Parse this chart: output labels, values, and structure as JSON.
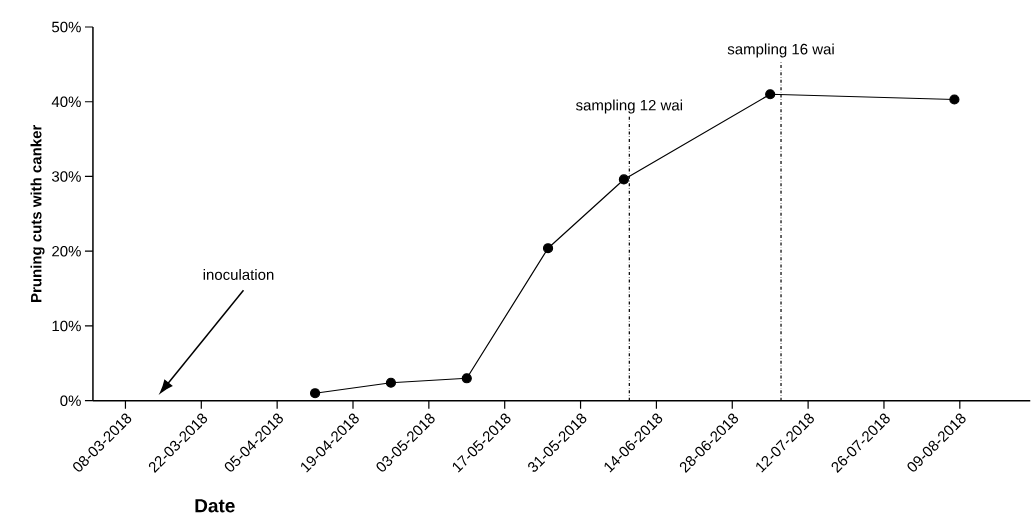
{
  "chart_data": {
    "type": "line",
    "xlabel": "Date",
    "ylabel": "Pruning cuts with canker",
    "x": [
      "2018-04-12",
      "2018-04-26",
      "2018-05-10",
      "2018-05-25",
      "2018-06-08",
      "2018-07-05",
      "2018-08-08"
    ],
    "series": [
      {
        "color": "#000000",
        "values": [
          1,
          2.4,
          3,
          20.4,
          29.6,
          41,
          40.3
        ]
      }
    ],
    "marker": "circle",
    "line_style": "solid",
    "grid": false,
    "xlim": [
      "2018-03-02",
      "2018-08-22"
    ],
    "xticks": [
      {
        "value": "2018-03-08",
        "label": "08-03-2018"
      },
      {
        "value": "2018-03-22",
        "label": "22-03-2018"
      },
      {
        "value": "2018-04-05",
        "label": "05-04-2018"
      },
      {
        "value": "2018-04-19",
        "label": "19-04-2018"
      },
      {
        "value": "2018-05-03",
        "label": "03-05-2018"
      },
      {
        "value": "2018-05-17",
        "label": "17-05-2018"
      },
      {
        "value": "2018-05-31",
        "label": "31-05-2018"
      },
      {
        "value": "2018-06-14",
        "label": "14-06-2018"
      },
      {
        "value": "2018-06-28",
        "label": "28-06-2018"
      },
      {
        "value": "2018-07-12",
        "label": "12-07-2018"
      },
      {
        "value": "2018-07-26",
        "label": "26-07-2018"
      },
      {
        "value": "2018-08-09",
        "label": "09-08-2018"
      }
    ],
    "ylim": [
      0,
      50
    ],
    "yticks": [
      {
        "value": 0,
        "label": "0%"
      },
      {
        "value": 10,
        "label": "10%"
      },
      {
        "value": 20,
        "label": "20%"
      },
      {
        "value": 30,
        "label": "30%"
      },
      {
        "value": 40,
        "label": "40%"
      },
      {
        "value": 50,
        "label": "50%"
      }
    ],
    "ref_lines": [
      {
        "axis": "x",
        "value": "2018-06-09",
        "label": "sampling 12 wai",
        "color": "#000000",
        "line_style": "dashdot"
      },
      {
        "axis": "x",
        "value": "2018-07-07",
        "label": "sampling 16 wai",
        "color": "#000000",
        "line_style": "dashdot"
      }
    ],
    "annotations": [
      "inoculation"
    ]
  }
}
